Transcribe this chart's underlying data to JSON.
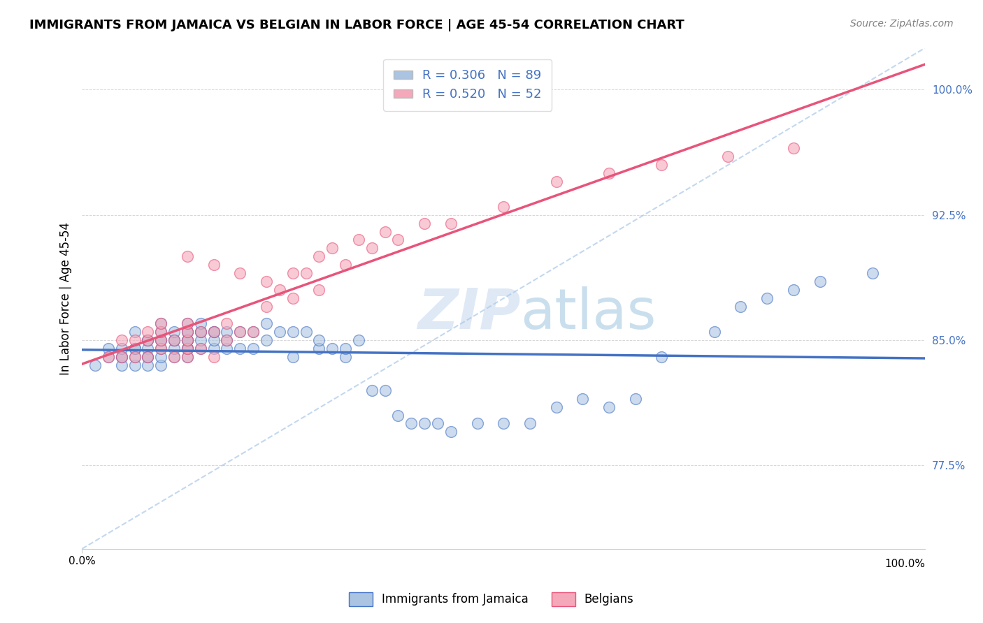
{
  "title": "IMMIGRANTS FROM JAMAICA VS BELGIAN IN LABOR FORCE | AGE 45-54 CORRELATION CHART",
  "source": "Source: ZipAtlas.com",
  "ylabel": "In Labor Force | Age 45-54",
  "xlim": [
    0.0,
    0.32
  ],
  "ylim": [
    0.725,
    1.025
  ],
  "yticks": [
    0.775,
    0.85,
    0.925,
    1.0
  ],
  "ytick_labels": [
    "77.5%",
    "85.0%",
    "92.5%",
    "100.0%"
  ],
  "xtick_left_label": "0.0%",
  "xtick_right_label": "100.0%",
  "legend_r1": "R = 0.306",
  "legend_n1": "N = 89",
  "legend_r2": "R = 0.520",
  "legend_n2": "N = 52",
  "color_jamaica": "#aac4e2",
  "color_belgian": "#f4a8ba",
  "color_jamaica_line": "#4472c4",
  "color_belgian_line": "#e8547a",
  "color_legend_r": "#4472c4",
  "color_legend_n": "#e8547a",
  "watermark_zip": "ZIP",
  "watermark_atlas": "atlas",
  "jamaica_x": [
    0.005,
    0.01,
    0.01,
    0.015,
    0.015,
    0.015,
    0.015,
    0.02,
    0.02,
    0.02,
    0.02,
    0.02,
    0.025,
    0.025,
    0.025,
    0.025,
    0.025,
    0.025,
    0.03,
    0.03,
    0.03,
    0.03,
    0.03,
    0.03,
    0.03,
    0.035,
    0.035,
    0.035,
    0.035,
    0.035,
    0.04,
    0.04,
    0.04,
    0.04,
    0.04,
    0.04,
    0.04,
    0.04,
    0.04,
    0.04,
    0.045,
    0.045,
    0.045,
    0.045,
    0.045,
    0.05,
    0.05,
    0.05,
    0.05,
    0.055,
    0.055,
    0.055,
    0.06,
    0.06,
    0.065,
    0.065,
    0.07,
    0.07,
    0.075,
    0.08,
    0.08,
    0.085,
    0.09,
    0.09,
    0.095,
    0.1,
    0.1,
    0.105,
    0.11,
    0.115,
    0.12,
    0.125,
    0.13,
    0.135,
    0.14,
    0.15,
    0.16,
    0.17,
    0.18,
    0.19,
    0.2,
    0.21,
    0.22,
    0.24,
    0.25,
    0.26,
    0.27,
    0.28,
    0.3
  ],
  "jamaica_y": [
    0.835,
    0.84,
    0.845,
    0.835,
    0.84,
    0.84,
    0.845,
    0.835,
    0.84,
    0.845,
    0.845,
    0.855,
    0.835,
    0.84,
    0.845,
    0.84,
    0.85,
    0.85,
    0.835,
    0.84,
    0.845,
    0.85,
    0.85,
    0.855,
    0.86,
    0.84,
    0.845,
    0.85,
    0.85,
    0.855,
    0.84,
    0.845,
    0.845,
    0.845,
    0.85,
    0.85,
    0.85,
    0.855,
    0.855,
    0.86,
    0.845,
    0.85,
    0.855,
    0.855,
    0.86,
    0.845,
    0.85,
    0.855,
    0.855,
    0.845,
    0.85,
    0.855,
    0.845,
    0.855,
    0.845,
    0.855,
    0.85,
    0.86,
    0.855,
    0.84,
    0.855,
    0.855,
    0.845,
    0.85,
    0.845,
    0.84,
    0.845,
    0.85,
    0.82,
    0.82,
    0.805,
    0.8,
    0.8,
    0.8,
    0.795,
    0.8,
    0.8,
    0.8,
    0.81,
    0.815,
    0.81,
    0.815,
    0.84,
    0.855,
    0.87,
    0.875,
    0.88,
    0.885,
    0.89
  ],
  "belgian_x": [
    0.01,
    0.015,
    0.015,
    0.02,
    0.02,
    0.025,
    0.025,
    0.025,
    0.03,
    0.03,
    0.03,
    0.03,
    0.035,
    0.035,
    0.04,
    0.04,
    0.04,
    0.04,
    0.04,
    0.045,
    0.045,
    0.05,
    0.05,
    0.055,
    0.055,
    0.06,
    0.065,
    0.07,
    0.075,
    0.08,
    0.085,
    0.09,
    0.1,
    0.11,
    0.12,
    0.13,
    0.14,
    0.16,
    0.18,
    0.2,
    0.22,
    0.245,
    0.27,
    0.04,
    0.05,
    0.06,
    0.07,
    0.08,
    0.09,
    0.095,
    0.105,
    0.115
  ],
  "belgian_y": [
    0.84,
    0.84,
    0.85,
    0.84,
    0.85,
    0.84,
    0.85,
    0.855,
    0.845,
    0.85,
    0.855,
    0.86,
    0.84,
    0.85,
    0.84,
    0.845,
    0.85,
    0.855,
    0.86,
    0.845,
    0.855,
    0.84,
    0.855,
    0.85,
    0.86,
    0.855,
    0.855,
    0.87,
    0.88,
    0.875,
    0.89,
    0.88,
    0.895,
    0.905,
    0.91,
    0.92,
    0.92,
    0.93,
    0.945,
    0.95,
    0.955,
    0.96,
    0.965,
    0.9,
    0.895,
    0.89,
    0.885,
    0.89,
    0.9,
    0.905,
    0.91,
    0.915
  ]
}
